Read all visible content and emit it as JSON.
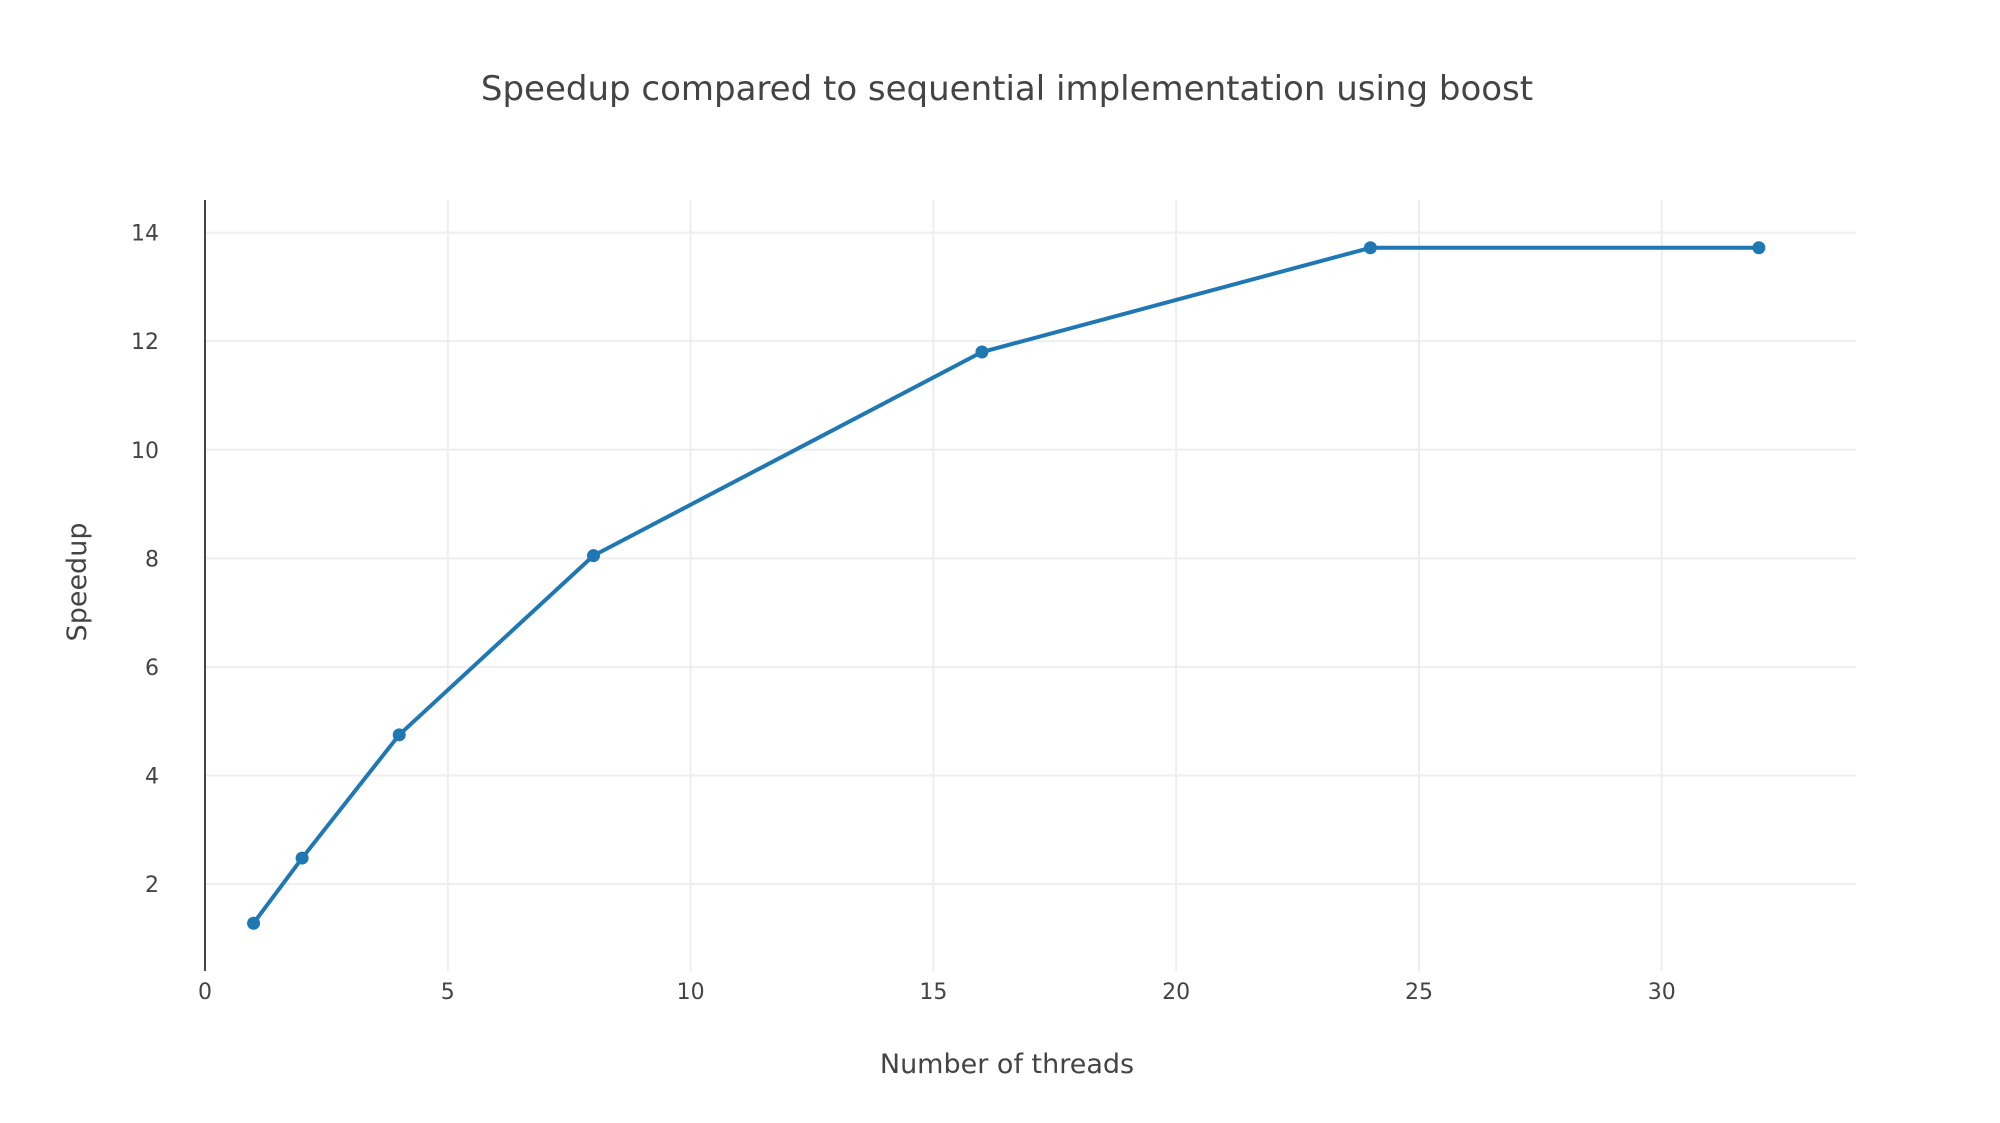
{
  "chart_data": {
    "type": "line",
    "title": "Speedup compared to sequential implementation using boost",
    "xlabel": "Number of threads",
    "ylabel": "Speedup",
    "xlim": [
      0,
      34
    ],
    "ylim": [
      0.4,
      14.6
    ],
    "xticks": [
      0,
      5,
      10,
      15,
      20,
      25,
      30
    ],
    "yticks": [
      2,
      4,
      6,
      8,
      10,
      12,
      14
    ],
    "grid": true,
    "legend": "none",
    "series": [
      {
        "color": "#1f77b4",
        "x": [
          1,
          2,
          4,
          8,
          16,
          24,
          32
        ],
        "y": [
          1.28,
          2.48,
          4.75,
          8.05,
          11.8,
          13.72,
          13.72
        ]
      }
    ]
  }
}
